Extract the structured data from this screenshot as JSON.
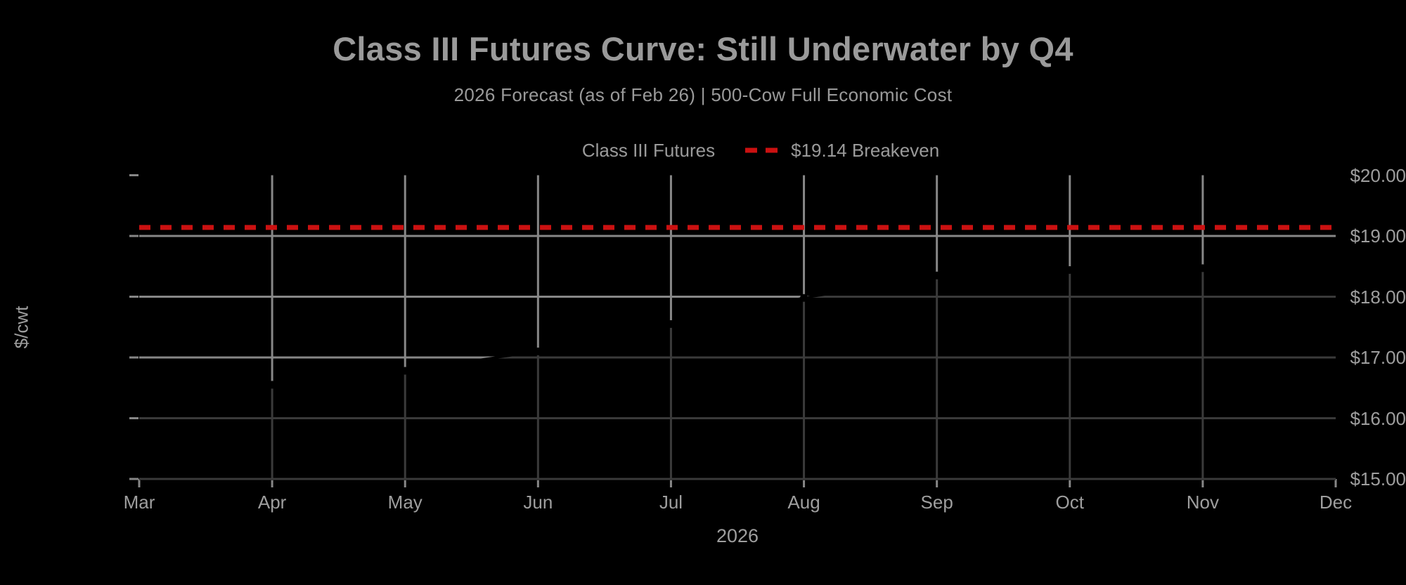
{
  "chart": {
    "title": "Class III Futures Curve: Still Underwater by Q4",
    "subtitle": "2026 Forecast (as of Feb 26) | 500-Cow Full Economic Cost",
    "ylabel": "$/cwt",
    "xlabel": "2026",
    "colors": {
      "background": "#000000",
      "grid": "#878787",
      "text": "#9a9a9a",
      "futures_line": "#000000",
      "area_fill": "rgba(0,0,0,0.57)",
      "breakeven_red": "#cb1111"
    }
  },
  "legend": {
    "items": [
      {
        "label": "Class III Futures",
        "swatch": "solid-line-with-dot",
        "color": "#000000"
      },
      {
        "label": "$19.14 Breakeven",
        "swatch": "dashed-line",
        "color": "#cb1111"
      }
    ]
  },
  "chart_data": {
    "type": "line",
    "title": "Class III Futures Curve: Still Underwater by Q4",
    "subtitle": "2026 Forecast (as of Feb 26) | 500-Cow Full Economic Cost",
    "x": [
      "Mar",
      "Apr",
      "May",
      "Jun",
      "Jul",
      "Aug",
      "Sep",
      "Oct",
      "Nov",
      "Dec"
    ],
    "x_axis_year": "2026",
    "xlabel": "2026",
    "ylabel": "$/cwt",
    "ylim": [
      15,
      20.1
    ],
    "grid": true,
    "legend_position": "top-center",
    "series": [
      {
        "name": "Class III Futures",
        "type": "line",
        "color": "#000000",
        "marker": "filled-circle",
        "area_fill": "rgba(0,0,0,0.57)",
        "values": [
          16.4,
          16.55,
          16.78,
          17.1,
          17.55,
          17.98,
          18.35,
          18.44,
          18.47,
          18.52
        ]
      },
      {
        "name": "$19.14 Breakeven",
        "type": "horizontal-reference-line",
        "style": "dashed",
        "color": "#cb1111",
        "value": 19.14
      }
    ],
    "yticks": [
      {
        "value": 20,
        "label": "$20.00",
        "gridline": false
      },
      {
        "value": 19,
        "label": "$19.00",
        "gridline": true
      },
      {
        "value": 18,
        "label": "$18.00",
        "gridline": true
      },
      {
        "value": 17,
        "label": "$17.00",
        "gridline": true
      },
      {
        "value": 16,
        "label": "$16.00",
        "gridline": true
      },
      {
        "value": 15,
        "label": "$15.00",
        "gridline": true
      }
    ]
  }
}
